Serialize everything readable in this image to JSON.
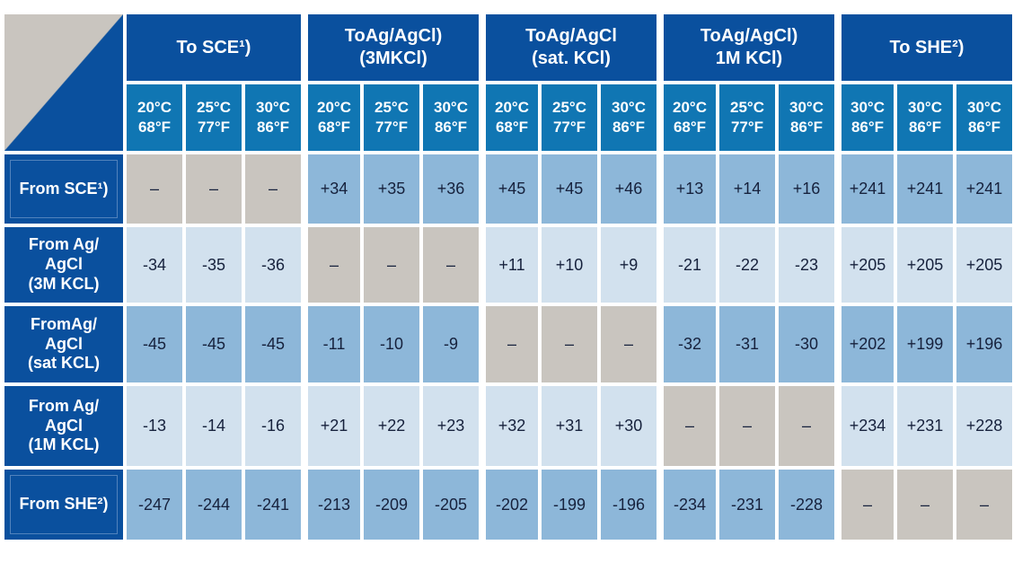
{
  "colors": {
    "header_dark_blue": "#0a509e",
    "subheader_blue": "#1076b3",
    "cell_medium_blue": "#8db7d9",
    "cell_light_blue": "#d2e1ee",
    "self_cell_gray": "#c9c5bf",
    "value_text": "#16213c",
    "gap_white": "#ffffff"
  },
  "chart_data": {
    "type": "table",
    "self_cell_marker": "–",
    "column_groups": [
      {
        "label": "To SCE¹)",
        "temps": [
          "20°C\n68°F",
          "25°C\n77°F",
          "30°C\n86°F"
        ]
      },
      {
        "label": "ToAg/AgCl)\n(3MKCl)",
        "temps": [
          "20°C\n68°F",
          "25°C\n77°F",
          "30°C\n86°F"
        ]
      },
      {
        "label": "ToAg/AgCl\n(sat. KCl)",
        "temps": [
          "20°C\n68°F",
          "25°C\n77°F",
          "30°C\n86°F"
        ]
      },
      {
        "label": "ToAg/AgCl)\n1M KCl)",
        "temps": [
          "20°C\n68°F",
          "25°C\n77°F",
          "30°C\n86°F"
        ]
      },
      {
        "label": "To SHE²)",
        "temps": [
          "30°C\n86°F",
          "30°C\n86°F",
          "30°C\n86°F"
        ]
      }
    ],
    "rows": [
      {
        "label": "From SCE¹)",
        "values": [
          "–",
          "–",
          "–",
          "+34",
          "+35",
          "+36",
          "+45",
          "+45",
          "+46",
          "+13",
          "+14",
          "+16",
          "+241",
          "+241",
          "+241"
        ]
      },
      {
        "label": "From Ag/\nAgCl\n(3M KCL)",
        "values": [
          "-34",
          "-35",
          "-36",
          "–",
          "–",
          "–",
          "+11",
          "+10",
          "+9",
          "-21",
          "-22",
          "-23",
          "+205",
          "+205",
          "+205"
        ]
      },
      {
        "label": "FromAg/\nAgCl\n(sat KCL)",
        "values": [
          "-45",
          "-45",
          "-45",
          "-11",
          "-10",
          "-9",
          "–",
          "–",
          "–",
          "-32",
          "-31",
          "-30",
          "+202",
          "+199",
          "+196"
        ]
      },
      {
        "label": "From Ag/\nAgCl\n(1M KCL)",
        "values": [
          "-13",
          "-14",
          "-16",
          "+21",
          "+22",
          "+23",
          "+32",
          "+31",
          "+30",
          "–",
          "–",
          "–",
          "+234",
          "+231",
          "+228"
        ]
      },
      {
        "label": "From SHE²)",
        "values": [
          "-247",
          "-244",
          "-241",
          "-213",
          "-209",
          "-205",
          "-202",
          "-199",
          "-196",
          "-234",
          "-231",
          "-228",
          "–",
          "–",
          "–"
        ]
      }
    ]
  }
}
